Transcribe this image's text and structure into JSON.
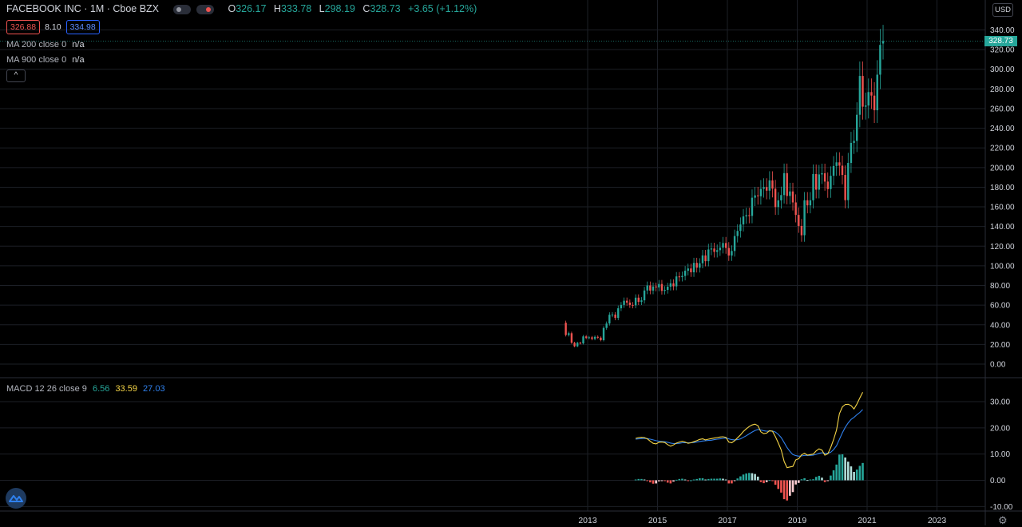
{
  "header": {
    "symbol": "FACEBOOK INC · 1M · Cboe BZX",
    "ohlc": [
      {
        "key": "O",
        "value": "326.17"
      },
      {
        "key": "H",
        "value": "333.78"
      },
      {
        "key": "L",
        "value": "298.19"
      },
      {
        "key": "C",
        "value": "328.73"
      }
    ],
    "change": "+3.65 (+1.12%)",
    "bid": "326.88",
    "spread": "8.10",
    "ask": "334.98",
    "currency": "USD",
    "last_price_tag": "328.73"
  },
  "indicators": {
    "ma200_label": "MA 200 close 0",
    "ma200_value": "n/a",
    "ma900_label": "MA 900 close 0",
    "ma900_value": "n/a",
    "collapse_glyph": "^",
    "macd_label": "MACD 12 26 close 9",
    "macd_hist": "6.56",
    "macd_line": "33.59",
    "macd_signal": "27.03"
  },
  "icons": [
    "logo-icon",
    "settings-gear-icon",
    "eye-icon",
    "close-icon"
  ],
  "colors": {
    "up": "#26a69a",
    "down": "#ef5350",
    "macd_line": "#f5d547",
    "signal_line": "#2f80ed",
    "hist_up_strong": "#26a69a",
    "hist_up_weak": "#b2dfdb",
    "hist_down_strong": "#ef5350",
    "hist_down_weak": "#ffcdd2"
  },
  "chart_data": [
    {
      "type": "candlestick",
      "title": "FACEBOOK INC · 1M · Cboe BZX",
      "x_ticks": [
        "2013",
        "2015",
        "2017",
        "2019",
        "2021",
        "2023"
      ],
      "y_ticks": [
        "0.00",
        "20.00",
        "40.00",
        "60.00",
        "80.00",
        "100.00",
        "120.00",
        "140.00",
        "160.00",
        "180.00",
        "200.00",
        "220.00",
        "240.00",
        "260.00",
        "280.00",
        "300.00",
        "320.00",
        "340.00"
      ],
      "ylim": [
        0,
        340
      ],
      "grid": true,
      "start": "2012-05",
      "close": [
        29.6,
        31.4,
        21.7,
        18.1,
        21.7,
        21.1,
        28.2,
        26.6,
        27.3,
        25.6,
        27.8,
        26.9,
        24.4,
        36.8,
        41.3,
        50.2,
        50.4,
        47.0,
        56.8,
        60.2,
        64.5,
        62.6,
        60.2,
        59.8,
        67.6,
        63.3,
        64.9,
        74.9,
        80.0,
        74.8,
        79.0,
        78.0,
        81.5,
        74.5,
        75.5,
        78.8,
        82.2,
        79.1,
        89.2,
        88.5,
        89.7,
        95.0,
        97.3,
        93.4,
        103.0,
        98.1,
        102.6,
        110.6,
        104.7,
        116.6,
        117.6,
        114.2,
        115.9,
        118.5,
        123.2,
        118.2,
        110.5,
        115.1,
        130.3,
        135.5,
        142.1,
        150.3,
        151.5,
        150.8,
        169.3,
        171.7,
        170.8,
        178.3,
        180.1,
        176.5,
        186.9,
        178.5,
        159.8,
        166.6,
        172.0,
        194.3,
        171.1,
        175.7,
        164.5,
        151.8,
        140.6,
        131.1,
        166.7,
        161.5,
        166.7,
        193.4,
        177.5,
        193.0,
        194.2,
        185.7,
        178.1,
        191.6,
        201.6,
        205.3,
        201.9,
        192.5,
        166.8,
        204.7,
        225.1,
        227.1,
        253.7,
        293.2,
        261.9,
        263.1,
        276.8,
        273.2,
        258.3,
        294.5,
        324.8,
        328.7
      ],
      "open": [
        42.1,
        29.6,
        31.4,
        21.7,
        18.1,
        21.7,
        21.1,
        28.2,
        26.6,
        27.3,
        25.6,
        27.8,
        26.9,
        24.4,
        36.8,
        41.3,
        50.2,
        50.4,
        47.0,
        56.8,
        60.2,
        64.5,
        62.6,
        60.2,
        59.8,
        67.6,
        63.3,
        64.9,
        74.9,
        80.0,
        74.8,
        79.0,
        78.0,
        81.5,
        74.5,
        75.5,
        78.8,
        82.2,
        79.1,
        89.2,
        88.5,
        89.7,
        95.0,
        97.3,
        93.4,
        103.0,
        98.1,
        102.6,
        110.6,
        104.7,
        116.6,
        117.6,
        114.2,
        115.9,
        118.5,
        123.2,
        118.2,
        110.5,
        115.1,
        130.3,
        135.5,
        142.1,
        150.3,
        151.5,
        150.8,
        169.3,
        171.7,
        170.8,
        178.3,
        180.1,
        176.5,
        186.9,
        178.5,
        159.8,
        166.6,
        172.0,
        194.3,
        171.1,
        175.7,
        164.5,
        151.8,
        140.6,
        131.1,
        166.7,
        161.5,
        166.7,
        193.4,
        177.5,
        193.0,
        194.2,
        185.7,
        178.1,
        191.6,
        201.6,
        205.3,
        201.9,
        192.5,
        166.8,
        204.7,
        225.1,
        227.1,
        253.7,
        293.2,
        261.9,
        263.1,
        276.8,
        273.2,
        258.3,
        294.5,
        326.2
      ]
    },
    {
      "type": "line",
      "title": "MACD 12 26 close 9",
      "y_ticks": [
        "-10.00",
        "0.00",
        "10.00",
        "20.00",
        "30.00"
      ],
      "ylim": [
        -10,
        36
      ],
      "start": "2014-05",
      "series": [
        {
          "name": "MACD",
          "values": [
            16.0,
            16.3,
            16.4,
            16.3,
            15.8,
            14.9,
            14.1,
            13.9,
            14.5,
            14.6,
            14.4,
            13.6,
            13.0,
            13.5,
            14.2,
            14.6,
            14.9,
            14.6,
            14.1,
            14.3,
            14.7,
            15.1,
            15.6,
            15.8,
            15.4,
            15.7,
            15.9,
            16.1,
            16.3,
            16.5,
            16.6,
            16.4,
            14.6,
            14.3,
            15.1,
            16.2,
            17.3,
            18.6,
            19.6,
            20.5,
            21.1,
            21.4,
            20.8,
            18.5,
            17.8,
            18.0,
            18.9,
            18.7,
            16.7,
            14.2,
            11.6,
            7.2,
            4.8,
            5.1,
            5.3,
            7.8,
            8.2,
            9.7,
            10.3,
            9.6,
            9.8,
            10.0,
            11.2,
            12.0,
            11.5,
            9.6,
            10.1,
            12.5,
            15.5,
            19.2,
            25.4,
            28.0,
            28.9,
            29.0,
            28.5,
            27.2,
            29.1,
            31.4,
            33.6
          ]
        },
        {
          "name": "Signal",
          "values": [
            15.7,
            15.8,
            15.9,
            16.0,
            15.9,
            15.7,
            15.4,
            15.1,
            14.9,
            14.8,
            14.7,
            14.5,
            14.2,
            14.0,
            14.0,
            14.1,
            14.3,
            14.3,
            14.3,
            14.3,
            14.4,
            14.6,
            14.8,
            15.0,
            15.1,
            15.2,
            15.3,
            15.5,
            15.7,
            15.8,
            16.0,
            16.1,
            15.8,
            15.5,
            15.4,
            15.5,
            15.8,
            16.4,
            17.0,
            17.7,
            18.4,
            19.0,
            19.4,
            19.2,
            18.9,
            18.7,
            18.8,
            18.8,
            18.4,
            17.5,
            16.3,
            14.4,
            12.5,
            11.0,
            9.8,
            9.4,
            9.2,
            9.3,
            9.5,
            9.5,
            9.5,
            9.6,
            9.9,
            10.3,
            10.5,
            10.3,
            10.3,
            10.7,
            11.7,
            13.2,
            15.6,
            18.1,
            20.2,
            21.9,
            23.2,
            24.0,
            25.0,
            25.9,
            27.0
          ]
        },
        {
          "name": "Histogram",
          "values": [
            0.3,
            0.5,
            0.5,
            0.3,
            -0.1,
            -0.8,
            -1.3,
            -1.2,
            -0.4,
            -0.2,
            -0.3,
            -0.9,
            -1.2,
            -0.5,
            0.2,
            0.5,
            0.6,
            0.3,
            -0.2,
            0.0,
            0.3,
            0.5,
            0.8,
            0.8,
            0.3,
            0.5,
            0.6,
            0.6,
            0.6,
            0.7,
            0.6,
            0.3,
            -1.2,
            -1.2,
            -0.3,
            0.7,
            1.5,
            2.2,
            2.6,
            2.8,
            2.7,
            2.4,
            1.4,
            -0.7,
            -1.1,
            -0.7,
            0.1,
            -0.1,
            -1.7,
            -3.3,
            -4.7,
            -7.2,
            -7.7,
            -5.9,
            -4.5,
            -1.6,
            -1.0,
            0.4,
            0.8,
            0.1,
            0.3,
            0.4,
            1.3,
            1.7,
            1.0,
            -0.7,
            -0.2,
            1.8,
            3.8,
            6.0,
            9.8,
            9.9,
            8.7,
            7.1,
            5.3,
            3.2,
            4.1,
            5.5,
            6.6
          ]
        }
      ]
    }
  ]
}
